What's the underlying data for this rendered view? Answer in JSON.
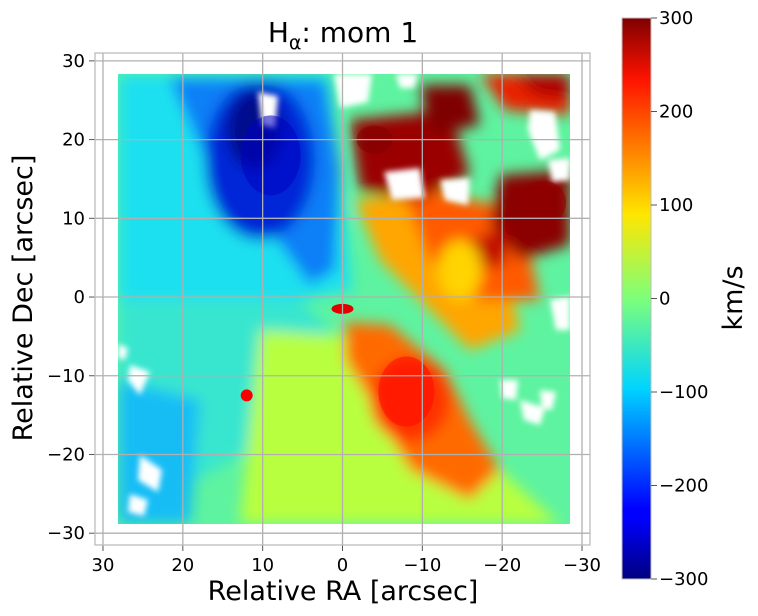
{
  "chart_data": {
    "type": "heatmap",
    "title": {
      "base": "H",
      "subscript": "α",
      "rest": ": mom 1"
    },
    "xlabel": "Relative RA [arcsec]",
    "ylabel": "Relative Dec [arcsec]",
    "xlim": [
      31,
      -31
    ],
    "ylim": [
      -31.5,
      31
    ],
    "x_ticks": [
      30,
      20,
      10,
      0,
      -10,
      -20,
      -30
    ],
    "y_ticks": [
      30,
      20,
      10,
      0,
      -10,
      -20,
      -30
    ],
    "x_tick_labels": [
      "30",
      "20",
      "10",
      "0",
      "−10",
      "−20",
      "−30"
    ],
    "y_tick_labels": [
      "30",
      "20",
      "10",
      "0",
      "−10",
      "−20",
      "−30"
    ],
    "grid": true,
    "colormap": "jet",
    "colorbar": {
      "label": "km/s",
      "range": [
        -300,
        300
      ],
      "ticks": [
        300,
        200,
        100,
        0,
        -100,
        -200,
        -300
      ],
      "tick_labels": [
        "300",
        "200",
        "100",
        "0",
        "−100",
        "−200",
        "−300"
      ]
    },
    "data_extent": {
      "ra": [
        29,
        -28
      ],
      "dec": [
        -28.5,
        28.5
      ]
    },
    "velocity_field_features": [
      {
        "feature": "blueshifted lobe",
        "ra": 9,
        "dec": 18,
        "velocity": -260
      },
      {
        "feature": "redshifted arm",
        "ra": -8,
        "dec": -12,
        "velocity": 220
      },
      {
        "feature": "redshifted NW region",
        "ra": -25,
        "dec": 12,
        "velocity": 290
      },
      {
        "feature": "redshifted N region",
        "ra": -4,
        "dec": 20,
        "velocity": 300
      },
      {
        "feature": "compact blob",
        "ra": 12,
        "dec": -12.5,
        "velocity": 230
      },
      {
        "feature": "nucleus",
        "ra": 0,
        "dec": -1.5,
        "velocity": 240
      }
    ]
  }
}
